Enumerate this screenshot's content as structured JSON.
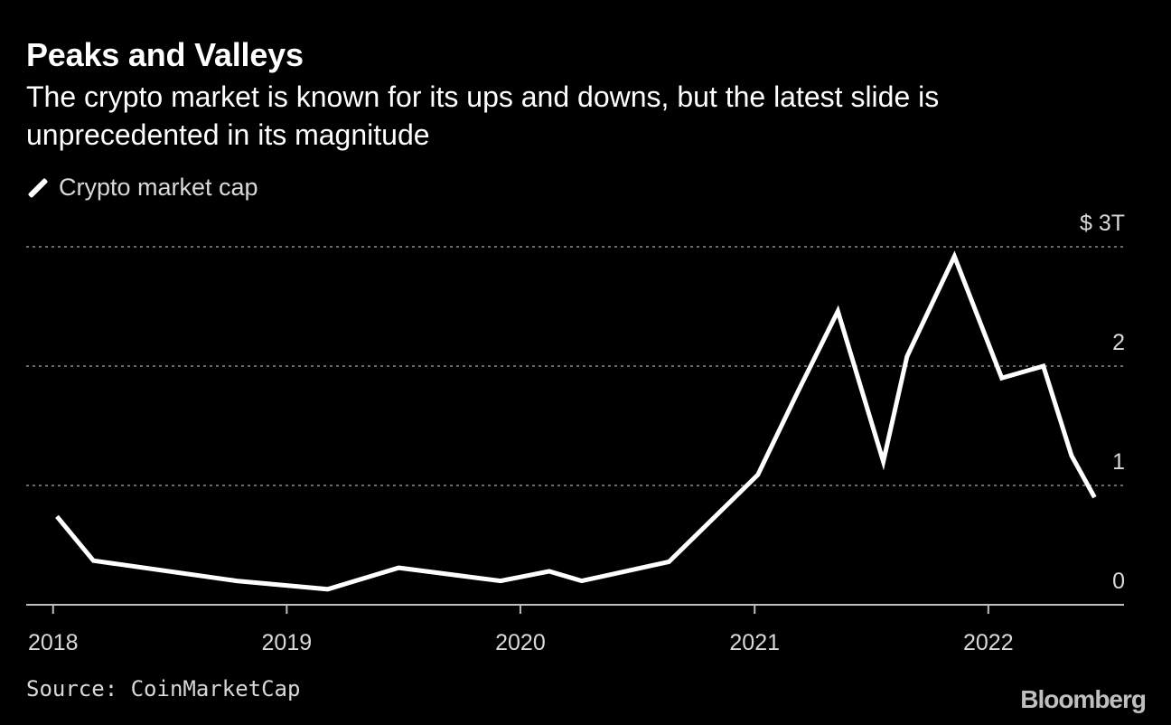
{
  "chart_data": {
    "type": "line",
    "title": "Peaks and Valleys",
    "subtitle": "The crypto market is known for its ups and downs, but the latest slide is unprecedented in its magnitude",
    "series": [
      {
        "name": "Crypto market cap",
        "color": "#ffffff",
        "x": [
          "2018-01-07",
          "2018-03-05",
          "2018-10-15",
          "2019-03-06",
          "2019-06-25",
          "2019-12-01",
          "2020-02-15",
          "2020-04-06",
          "2020-08-20",
          "2021-01-06",
          "2021-03-08",
          "2021-05-11",
          "2021-07-21",
          "2021-08-27",
          "2021-11-09",
          "2022-01-22",
          "2022-03-28",
          "2022-05-11",
          "2022-06-16"
        ],
        "values": [
          0.74,
          0.37,
          0.2,
          0.13,
          0.31,
          0.2,
          0.28,
          0.2,
          0.36,
          1.09,
          1.77,
          2.46,
          1.2,
          2.08,
          2.92,
          1.9,
          2.0,
          1.25,
          0.9
        ]
      }
    ],
    "xlabel": "",
    "ylabel": "",
    "xlim": [
      "2017-11-20",
      "2022-08-01"
    ],
    "ylim": [
      0,
      3
    ],
    "x_ticks": [
      "2018",
      "2019",
      "2020",
      "2021",
      "2022"
    ],
    "y_ticks": [
      0,
      1,
      2,
      3
    ],
    "y_tick_labels": [
      "0",
      "1",
      "2",
      "$ 3T"
    ],
    "grid": true,
    "legend_position": "top-left"
  },
  "source": "Source: CoinMarketCap",
  "brand": "Bloomberg"
}
